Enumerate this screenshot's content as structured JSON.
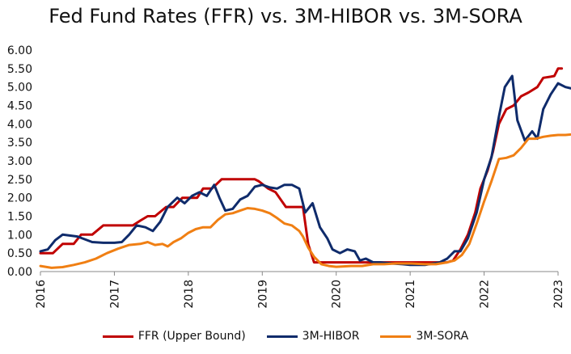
{
  "chart_data": {
    "type": "line",
    "title": "Fed Fund Rates (FFR) vs. 3M-HIBOR vs. 3M-SORA",
    "xlabel": "",
    "ylabel": "",
    "xlim": [
      2016,
      2023
    ],
    "ylim": [
      0,
      6
    ],
    "y_ticks": [
      "0.00",
      "0.50",
      "1.00",
      "1.50",
      "2.00",
      "2.50",
      "3.00",
      "3.50",
      "4.00",
      "4.50",
      "5.00",
      "5.50",
      "6.00"
    ],
    "x_ticks": [
      "2016",
      "2017",
      "2018",
      "2019",
      "2020",
      "2021",
      "2022",
      "2023"
    ],
    "grid": false,
    "legend_position": "bottom",
    "series": [
      {
        "name": "FFR (Upper Bound)",
        "color": "#c00000",
        "points": [
          [
            2016.0,
            0.5
          ],
          [
            2016.08,
            0.5
          ],
          [
            2016.17,
            0.5
          ],
          [
            2016.3,
            0.75
          ],
          [
            2016.45,
            0.75
          ],
          [
            2016.55,
            1.0
          ],
          [
            2016.7,
            1.0
          ],
          [
            2016.85,
            1.25
          ],
          [
            2017.0,
            1.25
          ],
          [
            2017.15,
            1.25
          ],
          [
            2017.25,
            1.25
          ],
          [
            2017.35,
            1.38
          ],
          [
            2017.45,
            1.5
          ],
          [
            2017.55,
            1.5
          ],
          [
            2017.7,
            1.75
          ],
          [
            2017.8,
            1.75
          ],
          [
            2017.92,
            2.0
          ],
          [
            2018.0,
            2.0
          ],
          [
            2018.12,
            2.0
          ],
          [
            2018.2,
            2.25
          ],
          [
            2018.32,
            2.25
          ],
          [
            2018.45,
            2.5
          ],
          [
            2018.6,
            2.5
          ],
          [
            2018.75,
            2.5
          ],
          [
            2018.9,
            2.5
          ],
          [
            2018.95,
            2.45
          ],
          [
            2019.08,
            2.25
          ],
          [
            2019.18,
            2.15
          ],
          [
            2019.32,
            1.75
          ],
          [
            2019.45,
            1.75
          ],
          [
            2019.55,
            1.75
          ],
          [
            2019.62,
            0.75
          ],
          [
            2019.7,
            0.25
          ],
          [
            2019.85,
            0.25
          ],
          [
            2020.0,
            0.25
          ],
          [
            2020.5,
            0.25
          ],
          [
            2021.0,
            0.25
          ],
          [
            2021.3,
            0.25
          ],
          [
            2021.5,
            0.25
          ],
          [
            2021.58,
            0.3
          ],
          [
            2021.68,
            0.6
          ],
          [
            2021.78,
            1.0
          ],
          [
            2021.88,
            1.6
          ],
          [
            2021.95,
            2.25
          ],
          [
            2022.05,
            2.75
          ],
          [
            2022.12,
            3.25
          ],
          [
            2022.2,
            4.0
          ],
          [
            2022.3,
            4.4
          ],
          [
            2022.4,
            4.5
          ],
          [
            2022.5,
            4.75
          ],
          [
            2022.6,
            4.85
          ],
          [
            2022.72,
            5.0
          ],
          [
            2022.8,
            5.25
          ],
          [
            2022.9,
            5.28
          ],
          [
            2022.95,
            5.3
          ],
          [
            2023.0,
            5.5
          ],
          [
            2023.05,
            5.5
          ]
        ]
      },
      {
        "name": "3M-HIBOR",
        "color": "#0f2b6b",
        "points": [
          [
            2016.0,
            0.55
          ],
          [
            2016.1,
            0.6
          ],
          [
            2016.2,
            0.85
          ],
          [
            2016.3,
            1.0
          ],
          [
            2016.5,
            0.95
          ],
          [
            2016.7,
            0.8
          ],
          [
            2016.85,
            0.78
          ],
          [
            2017.0,
            0.78
          ],
          [
            2017.1,
            0.8
          ],
          [
            2017.2,
            1.0
          ],
          [
            2017.3,
            1.25
          ],
          [
            2017.42,
            1.2
          ],
          [
            2017.52,
            1.1
          ],
          [
            2017.62,
            1.35
          ],
          [
            2017.72,
            1.75
          ],
          [
            2017.85,
            2.0
          ],
          [
            2017.95,
            1.85
          ],
          [
            2018.05,
            2.05
          ],
          [
            2018.15,
            2.15
          ],
          [
            2018.25,
            2.05
          ],
          [
            2018.35,
            2.35
          ],
          [
            2018.42,
            2.0
          ],
          [
            2018.5,
            1.65
          ],
          [
            2018.6,
            1.7
          ],
          [
            2018.7,
            1.95
          ],
          [
            2018.8,
            2.05
          ],
          [
            2018.9,
            2.3
          ],
          [
            2019.0,
            2.35
          ],
          [
            2019.1,
            2.28
          ],
          [
            2019.2,
            2.25
          ],
          [
            2019.3,
            2.35
          ],
          [
            2019.4,
            2.35
          ],
          [
            2019.5,
            2.25
          ],
          [
            2019.58,
            1.6
          ],
          [
            2019.68,
            1.85
          ],
          [
            2019.78,
            1.2
          ],
          [
            2019.88,
            0.9
          ],
          [
            2019.95,
            0.6
          ],
          [
            2020.05,
            0.5
          ],
          [
            2020.15,
            0.6
          ],
          [
            2020.25,
            0.55
          ],
          [
            2020.32,
            0.3
          ],
          [
            2020.4,
            0.35
          ],
          [
            2020.5,
            0.25
          ],
          [
            2020.6,
            0.25
          ],
          [
            2020.75,
            0.22
          ],
          [
            2020.9,
            0.2
          ],
          [
            2021.0,
            0.18
          ],
          [
            2021.2,
            0.18
          ],
          [
            2021.4,
            0.25
          ],
          [
            2021.5,
            0.35
          ],
          [
            2021.6,
            0.55
          ],
          [
            2021.68,
            0.55
          ],
          [
            2021.78,
            0.9
          ],
          [
            2021.9,
            1.6
          ],
          [
            2022.0,
            2.5
          ],
          [
            2022.1,
            3.1
          ],
          [
            2022.2,
            4.2
          ],
          [
            2022.28,
            5.0
          ],
          [
            2022.38,
            5.3
          ],
          [
            2022.45,
            4.1
          ],
          [
            2022.55,
            3.55
          ],
          [
            2022.65,
            3.8
          ],
          [
            2022.72,
            3.6
          ],
          [
            2022.8,
            4.4
          ],
          [
            2022.9,
            4.8
          ],
          [
            2023.0,
            5.1
          ],
          [
            2023.1,
            5.0
          ],
          [
            2023.2,
            4.95
          ]
        ]
      },
      {
        "name": "3M-SORA",
        "color": "#f07f13",
        "points": [
          [
            2016.0,
            0.15
          ],
          [
            2016.15,
            0.1
          ],
          [
            2016.3,
            0.12
          ],
          [
            2016.45,
            0.18
          ],
          [
            2016.6,
            0.25
          ],
          [
            2016.75,
            0.35
          ],
          [
            2016.9,
            0.5
          ],
          [
            2017.05,
            0.62
          ],
          [
            2017.2,
            0.72
          ],
          [
            2017.35,
            0.75
          ],
          [
            2017.45,
            0.8
          ],
          [
            2017.55,
            0.72
          ],
          [
            2017.65,
            0.75
          ],
          [
            2017.72,
            0.68
          ],
          [
            2017.8,
            0.8
          ],
          [
            2017.9,
            0.9
          ],
          [
            2018.0,
            1.05
          ],
          [
            2018.1,
            1.15
          ],
          [
            2018.2,
            1.2
          ],
          [
            2018.3,
            1.2
          ],
          [
            2018.4,
            1.4
          ],
          [
            2018.5,
            1.55
          ],
          [
            2018.6,
            1.58
          ],
          [
            2018.7,
            1.65
          ],
          [
            2018.8,
            1.72
          ],
          [
            2018.9,
            1.7
          ],
          [
            2019.0,
            1.65
          ],
          [
            2019.1,
            1.58
          ],
          [
            2019.2,
            1.45
          ],
          [
            2019.3,
            1.3
          ],
          [
            2019.4,
            1.25
          ],
          [
            2019.5,
            1.1
          ],
          [
            2019.55,
            0.95
          ],
          [
            2019.62,
            0.65
          ],
          [
            2019.7,
            0.4
          ],
          [
            2019.8,
            0.2
          ],
          [
            2019.9,
            0.15
          ],
          [
            2020.0,
            0.13
          ],
          [
            2020.2,
            0.15
          ],
          [
            2020.35,
            0.15
          ],
          [
            2020.5,
            0.2
          ],
          [
            2020.65,
            0.2
          ],
          [
            2020.8,
            0.22
          ],
          [
            2021.0,
            0.22
          ],
          [
            2021.2,
            0.2
          ],
          [
            2021.35,
            0.2
          ],
          [
            2021.5,
            0.25
          ],
          [
            2021.6,
            0.3
          ],
          [
            2021.7,
            0.45
          ],
          [
            2021.8,
            0.75
          ],
          [
            2021.9,
            1.3
          ],
          [
            2022.0,
            1.9
          ],
          [
            2022.1,
            2.45
          ],
          [
            2022.2,
            3.05
          ],
          [
            2022.3,
            3.08
          ],
          [
            2022.4,
            3.15
          ],
          [
            2022.5,
            3.35
          ],
          [
            2022.6,
            3.6
          ],
          [
            2022.7,
            3.6
          ],
          [
            2022.8,
            3.65
          ],
          [
            2022.9,
            3.68
          ],
          [
            2023.0,
            3.7
          ],
          [
            2023.1,
            3.7
          ],
          [
            2023.2,
            3.72
          ]
        ]
      }
    ]
  }
}
